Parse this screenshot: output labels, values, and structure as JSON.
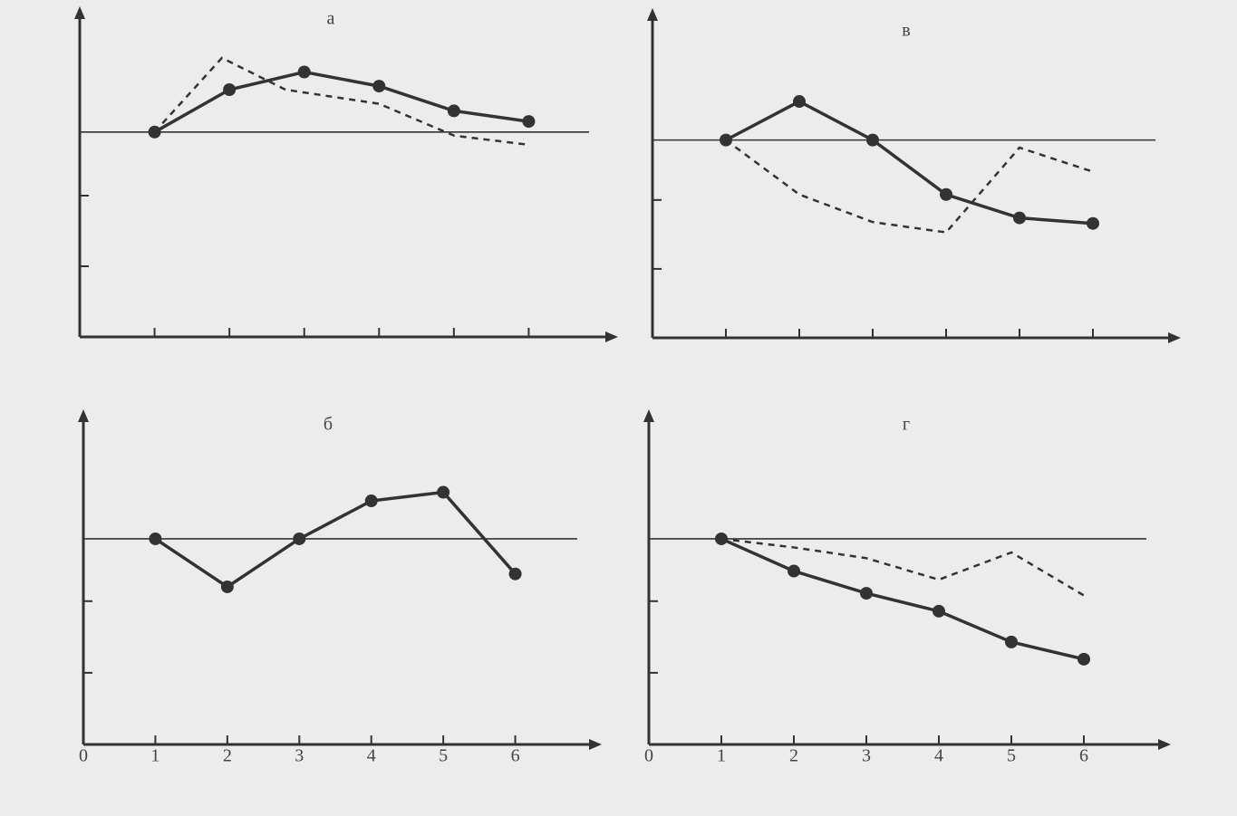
{
  "chart_data": [
    {
      "type": "line",
      "title": "а",
      "xlim": [
        0,
        7
      ],
      "ylim": [
        0,
        4.5
      ],
      "xticks": [
        1,
        2,
        3,
        4,
        5,
        6
      ],
      "yticks": [
        1,
        2
      ],
      "tick_labels": false,
      "hline": 2.9,
      "color": "#333333",
      "series": [
        {
          "style": "solid",
          "markers": true,
          "x": [
            1,
            2,
            3,
            4,
            5,
            6
          ],
          "values": [
            2.9,
            3.5,
            3.75,
            3.55,
            3.2,
            3.05
          ]
        },
        {
          "style": "dashed",
          "markers": false,
          "x": [
            1,
            1.9,
            2.75,
            4,
            5,
            6
          ],
          "values": [
            2.9,
            3.95,
            3.5,
            3.3,
            2.85,
            2.72
          ]
        }
      ]
    },
    {
      "type": "line",
      "title": "в",
      "xlim": [
        0,
        7
      ],
      "ylim": [
        0,
        4.6
      ],
      "xticks": [
        1,
        2,
        3,
        4,
        5,
        6
      ],
      "yticks": [
        1,
        2
      ],
      "tick_labels": false,
      "hline": 2.87,
      "color": "#333333",
      "series": [
        {
          "style": "solid",
          "markers": true,
          "x": [
            1,
            2,
            3,
            4,
            5,
            6
          ],
          "values": [
            2.87,
            3.43,
            2.87,
            2.08,
            1.74,
            1.66
          ]
        },
        {
          "style": "dashed",
          "markers": false,
          "x": [
            1,
            2,
            3,
            4,
            5,
            6
          ],
          "values": [
            2.87,
            2.08,
            1.68,
            1.53,
            2.76,
            2.41
          ]
        }
      ]
    },
    {
      "type": "line",
      "title": "б",
      "xlim": [
        0,
        7
      ],
      "ylim": [
        0,
        4.5
      ],
      "xticks": [
        0,
        1,
        2,
        3,
        4,
        5,
        6
      ],
      "yticks": [
        1,
        2
      ],
      "tick_labels": true,
      "hline": 2.87,
      "color": "#333333",
      "series": [
        {
          "style": "solid",
          "markers": true,
          "x": [
            1,
            2,
            3,
            4,
            5,
            6
          ],
          "values": [
            2.87,
            2.2,
            2.87,
            3.4,
            3.52,
            2.38
          ]
        }
      ]
    },
    {
      "type": "line",
      "title": "г",
      "xlim": [
        0,
        7
      ],
      "ylim": [
        0,
        4.5
      ],
      "xticks": [
        0,
        1,
        2,
        3,
        4,
        5,
        6
      ],
      "yticks": [
        1,
        2
      ],
      "tick_labels": true,
      "hline": 2.87,
      "color": "#333333",
      "series": [
        {
          "style": "solid",
          "markers": true,
          "x": [
            1,
            2,
            3,
            4,
            5,
            6
          ],
          "values": [
            2.87,
            2.42,
            2.11,
            1.86,
            1.43,
            1.19
          ]
        },
        {
          "style": "dashed",
          "markers": false,
          "x": [
            1,
            2,
            3,
            4,
            5,
            6
          ],
          "values": [
            2.87,
            2.75,
            2.6,
            2.3,
            2.68,
            2.08
          ]
        }
      ]
    }
  ]
}
